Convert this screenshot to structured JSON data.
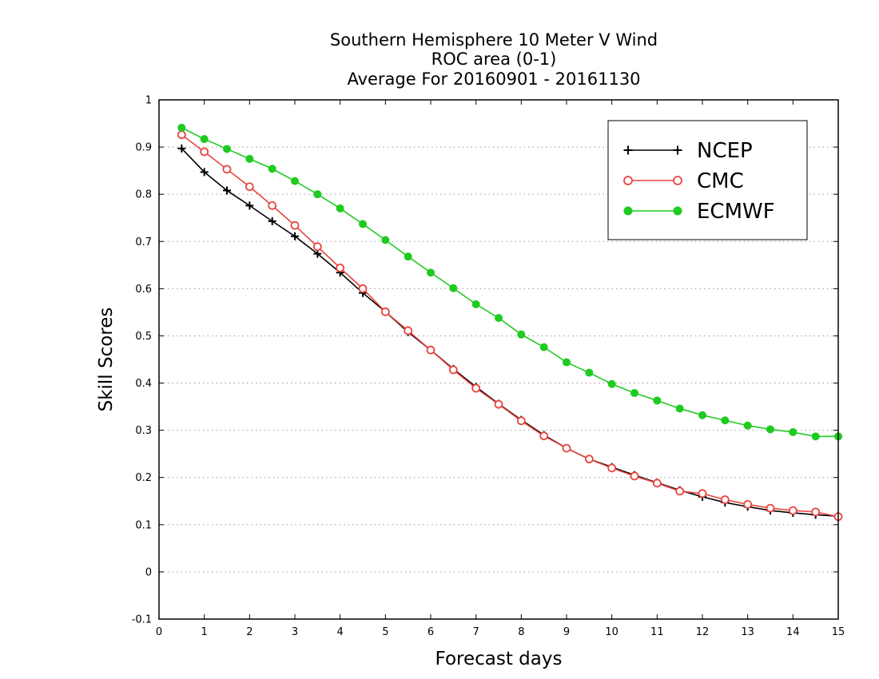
{
  "chart_data": {
    "type": "line",
    "title": [
      "Southern Hemisphere 10 Meter V Wind",
      "ROC area (0-1)",
      "Average For 20160901 - 20161130"
    ],
    "xlabel": "Forecast days",
    "ylabel": "Skill Scores",
    "xlim": [
      0,
      15
    ],
    "ylim": [
      -0.1,
      1
    ],
    "xticks": [
      0,
      1,
      2,
      3,
      4,
      5,
      6,
      7,
      8,
      9,
      10,
      11,
      12,
      13,
      14,
      15
    ],
    "xtick_labels": [
      "0",
      "1",
      "2",
      "3",
      "4",
      "5",
      "6",
      "7",
      "8",
      "9",
      "10",
      "11",
      "12",
      "13",
      "14",
      "15"
    ],
    "yticks": [
      -0.1,
      0,
      0.1,
      0.2,
      0.3,
      0.4,
      0.5,
      0.6,
      0.7,
      0.8,
      0.9,
      1
    ],
    "ytick_labels": [
      "-0.1",
      "0",
      "0.1",
      "0.2",
      "0.3",
      "0.4",
      "0.5",
      "0.6",
      "0.7",
      "0.8",
      "0.9",
      "1"
    ],
    "grid": "horizontal dotted",
    "legend_position": "top-right",
    "x": [
      0.5,
      1,
      1.5,
      2,
      2.5,
      3,
      3.5,
      4,
      4.5,
      5,
      5.5,
      6,
      6.5,
      7,
      7.5,
      8,
      8.5,
      9,
      9.5,
      10,
      10.5,
      11,
      11.5,
      12,
      12.5,
      13,
      13.5,
      14,
      14.5,
      15
    ],
    "series": [
      {
        "name": "NCEP",
        "color": "#000000",
        "marker": "plus",
        "values": [
          0.897,
          0.847,
          0.808,
          0.776,
          0.743,
          0.711,
          0.674,
          0.634,
          0.591,
          0.551,
          0.508,
          0.47,
          0.43,
          0.392,
          0.356,
          0.322,
          0.29,
          0.262,
          0.239,
          0.222,
          0.205,
          0.189,
          0.173,
          0.159,
          0.147,
          0.138,
          0.13,
          0.125,
          0.121,
          0.118
        ]
      },
      {
        "name": "CMC",
        "color": "#e8443e",
        "marker": "open-circle",
        "values": [
          0.926,
          0.89,
          0.853,
          0.816,
          0.776,
          0.734,
          0.689,
          0.644,
          0.6,
          0.551,
          0.511,
          0.47,
          0.428,
          0.389,
          0.355,
          0.32,
          0.288,
          0.262,
          0.239,
          0.22,
          0.203,
          0.188,
          0.171,
          0.166,
          0.153,
          0.143,
          0.135,
          0.13,
          0.127,
          0.117
        ]
      },
      {
        "name": "ECMWF",
        "color": "#1fcb1f",
        "marker": "filled-circle",
        "values": [
          0.941,
          0.917,
          0.896,
          0.875,
          0.854,
          0.828,
          0.8,
          0.77,
          0.737,
          0.703,
          0.668,
          0.634,
          0.601,
          0.567,
          0.538,
          0.503,
          0.476,
          0.444,
          0.422,
          0.398,
          0.379,
          0.363,
          0.346,
          0.332,
          0.321,
          0.31,
          0.302,
          0.296,
          0.287,
          0.287
        ]
      }
    ]
  }
}
